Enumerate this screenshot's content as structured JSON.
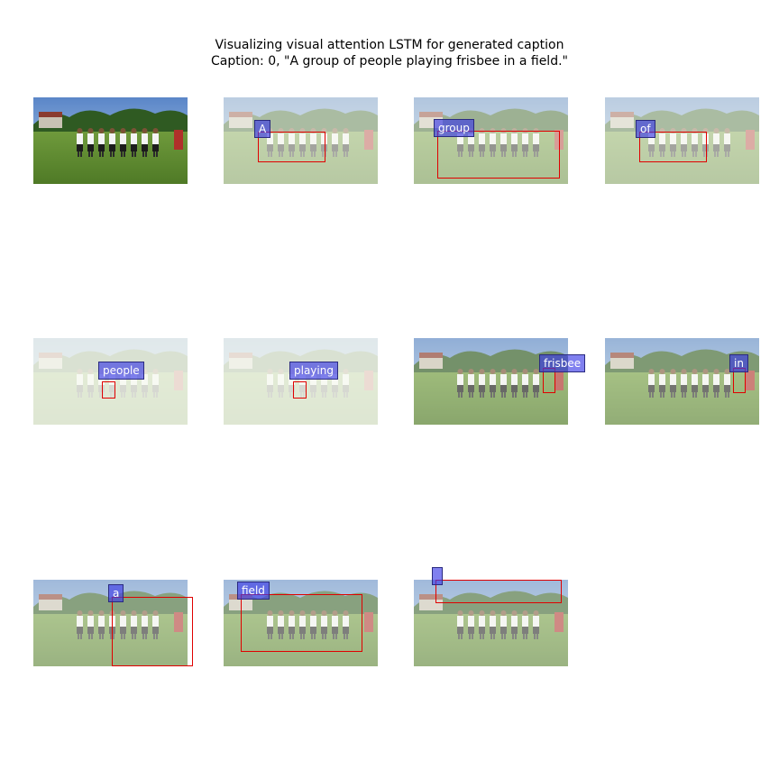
{
  "figure": {
    "title_line1": "Visualizing visual attention LSTM for generated caption",
    "title_line2": "Caption: 0, \"A group of people playing frisbee in a field.\""
  },
  "chart_data": {
    "type": "image-grid",
    "title": "Visualizing visual attention LSTM for generated caption",
    "caption_index": 0,
    "caption": "A group of people playing frisbee in a field.",
    "grid": {
      "rows": 3,
      "cols": 4
    },
    "panels": [
      {
        "word": "",
        "kind": "original"
      },
      {
        "word": "A",
        "kind": "attention"
      },
      {
        "word": "group",
        "kind": "attention"
      },
      {
        "word": "of",
        "kind": "attention"
      },
      {
        "word": "people",
        "kind": "attention"
      },
      {
        "word": "playing",
        "kind": "attention"
      },
      {
        "word": "frisbee",
        "kind": "attention"
      },
      {
        "word": "in",
        "kind": "attention"
      },
      {
        "word": "a",
        "kind": "attention"
      },
      {
        "word": "field",
        "kind": "attention"
      },
      {
        "word": "",
        "kind": "attention"
      }
    ],
    "colors": {
      "attention_box": "#e00000",
      "word_label": "#6a6af0"
    }
  }
}
